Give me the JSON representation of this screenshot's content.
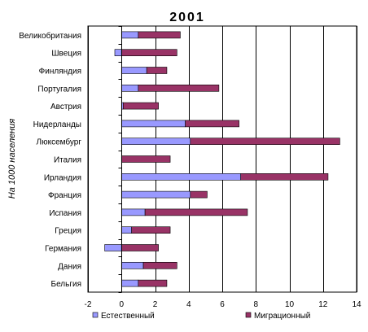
{
  "chart_data": {
    "type": "bar",
    "orientation": "horizontal",
    "stacked": true,
    "title": "2001",
    "ylabel": "На 1000 населения",
    "xlabel": "",
    "xlim": [
      -2,
      14
    ],
    "xticks": [
      -2,
      0,
      2,
      4,
      6,
      8,
      10,
      12,
      14
    ],
    "grid": "vertical",
    "legend_position": "bottom",
    "categories": [
      "Великобритания",
      "Швеция",
      "Финляндия",
      "Португалия",
      "Австрия",
      "Нидерланды",
      "Люксембург",
      "Италия",
      "Ирландия",
      "Франция",
      "Испания",
      "Греция",
      "Германия",
      "Дания",
      "Бельгия"
    ],
    "series": [
      {
        "name": "Естественный",
        "color": "#9999ff",
        "values": [
          1.0,
          -0.4,
          1.5,
          1.0,
          0.1,
          3.8,
          4.1,
          0.0,
          7.1,
          4.1,
          1.4,
          0.6,
          -1.0,
          1.3,
          1.0
        ]
      },
      {
        "name": "Миграционный",
        "color": "#993366",
        "values": [
          2.5,
          3.3,
          1.2,
          4.8,
          2.1,
          3.2,
          8.9,
          2.9,
          5.2,
          1.0,
          6.1,
          2.3,
          2.2,
          2.0,
          1.7
        ]
      }
    ]
  }
}
